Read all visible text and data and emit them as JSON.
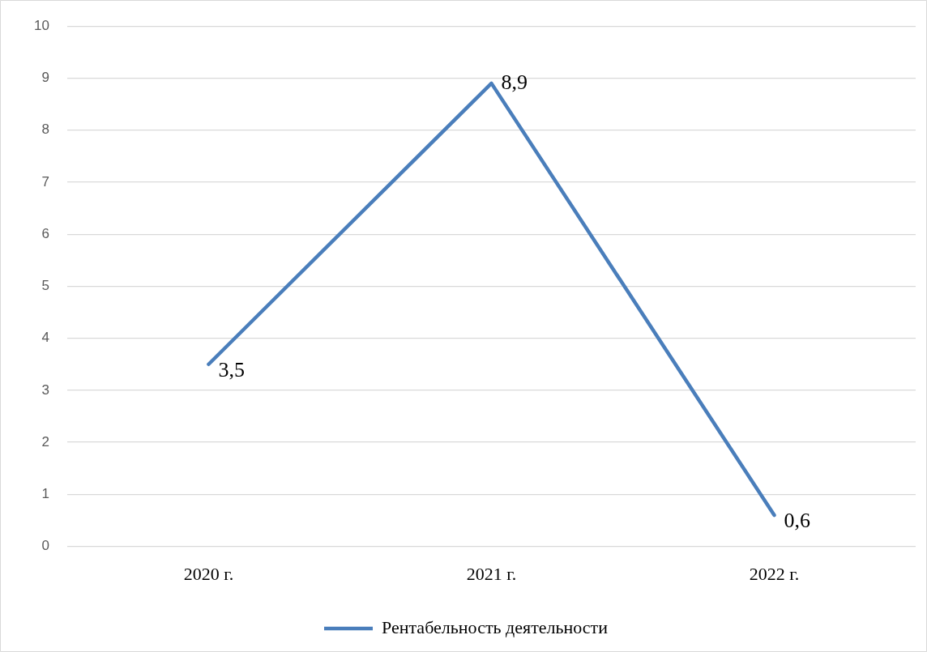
{
  "chart_data": {
    "type": "line",
    "categories": [
      "2020 г.",
      "2021 г.",
      "2022 г."
    ],
    "series": [
      {
        "name": "Рентабельность деятельности",
        "color": "#4a7ebb",
        "values": [
          3.5,
          8.9,
          0.6
        ],
        "value_labels": [
          "3,5",
          "8,9",
          "0,6"
        ]
      }
    ],
    "ylim": [
      0,
      10
    ],
    "yticks": [
      0,
      1,
      2,
      3,
      4,
      5,
      6,
      7,
      8,
      9,
      10
    ],
    "grid": "y",
    "legend": "bottom",
    "marker": "none",
    "line_style": "solid"
  }
}
